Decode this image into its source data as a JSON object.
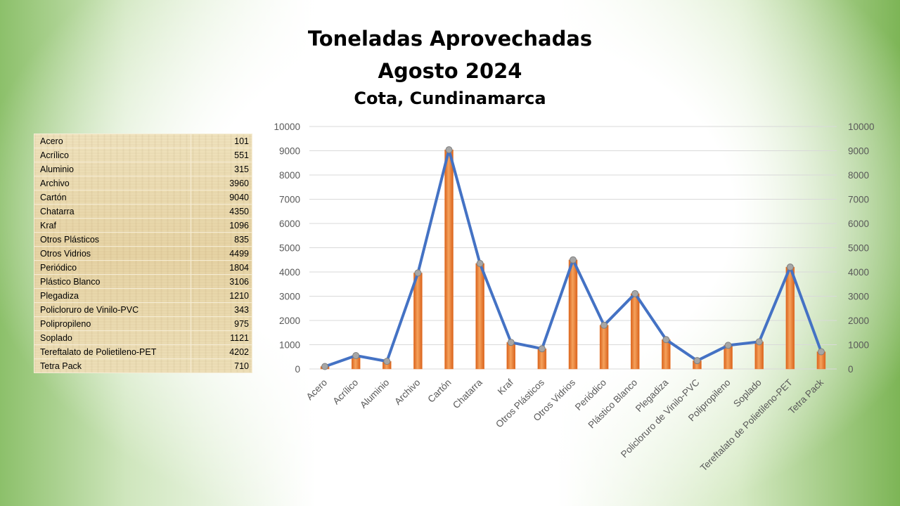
{
  "title": {
    "line1": "Toneladas Aprovechadas",
    "line2": "Agosto 2024",
    "subtitle": "Cota, Cundinamarca"
  },
  "chart_data": {
    "type": "bar",
    "title": "Toneladas Aprovechadas Agosto 2024",
    "subtitle": "Cota, Cundinamarca",
    "categories": [
      "Acero",
      "Acrílico",
      "Aluminio",
      "Archivo",
      "Cartón",
      "Chatarra",
      "Kraf",
      "Otros Plásticos",
      "Otros Vidrios",
      "Periódico",
      "Plástico Blanco",
      "Plegadiza",
      "Policloruro de Vinilo-PVC",
      "Polipropileno",
      "Soplado",
      "Tereftalato de Polietileno-PET",
      "Tetra Pack"
    ],
    "values": [
      101,
      551,
      315,
      3960,
      9040,
      4350,
      1096,
      835,
      4499,
      1804,
      3106,
      1210,
      343,
      975,
      1121,
      4202,
      710
    ],
    "series": [
      {
        "name": "Toneladas (barras)",
        "type": "bar",
        "color": "#ed7d31"
      },
      {
        "name": "Toneladas (línea)",
        "type": "line",
        "color": "#4472c4"
      }
    ],
    "ylim": [
      0,
      10000
    ],
    "yticks": [
      0,
      1000,
      2000,
      3000,
      4000,
      5000,
      6000,
      7000,
      8000,
      9000,
      10000
    ],
    "secondary_ylim": [
      0,
      10000
    ],
    "grid": true,
    "legend": "none",
    "xlabel": "",
    "ylabel": ""
  },
  "table": {
    "rows": [
      {
        "name": "Acero",
        "value": "101"
      },
      {
        "name": "Acrílico",
        "value": "551"
      },
      {
        "name": "Aluminio",
        "value": "315"
      },
      {
        "name": "Archivo",
        "value": "3960"
      },
      {
        "name": "Cartón",
        "value": "9040"
      },
      {
        "name": "Chatarra",
        "value": "4350"
      },
      {
        "name": "Kraf",
        "value": "1096"
      },
      {
        "name": "Otros Plásticos",
        "value": "835"
      },
      {
        "name": "Otros Vidrios",
        "value": "4499"
      },
      {
        "name": "Periódico",
        "value": "1804"
      },
      {
        "name": "Plástico Blanco",
        "value": "3106"
      },
      {
        "name": "Plegadiza",
        "value": "1210"
      },
      {
        "name": "Policloruro de Vinilo-PVC",
        "value": "343"
      },
      {
        "name": "Polipropileno",
        "value": "975"
      },
      {
        "name": "Soplado",
        "value": "1121"
      },
      {
        "name": "Tereftalato de Polietileno-PET",
        "value": "4202"
      },
      {
        "name": "Tetra Pack",
        "value": "710"
      }
    ]
  }
}
